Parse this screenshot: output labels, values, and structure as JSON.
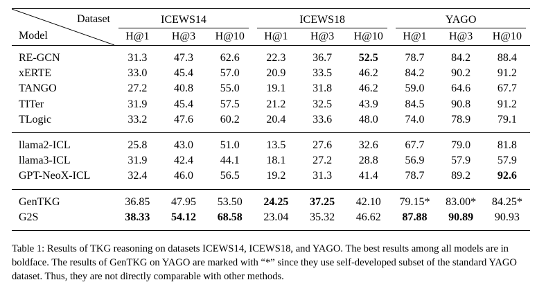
{
  "table": {
    "header": {
      "dataset_label": "Dataset",
      "model_label": "Model",
      "datasets": [
        "ICEWS14",
        "ICEWS18",
        "YAGO"
      ],
      "metrics": [
        "H@1",
        "H@3",
        "H@10"
      ]
    },
    "groups": [
      {
        "rows": [
          {
            "model": "RE-GCN",
            "values": [
              "31.3",
              "47.3",
              "62.6",
              "22.3",
              "36.7",
              "52.5",
              "78.7",
              "84.2",
              "88.4"
            ],
            "bold": [
              5
            ]
          },
          {
            "model": "xERTE",
            "values": [
              "33.0",
              "45.4",
              "57.0",
              "20.9",
              "33.5",
              "46.2",
              "84.2",
              "90.2",
              "91.2"
            ],
            "bold": []
          },
          {
            "model": "TANGO",
            "values": [
              "27.2",
              "40.8",
              "55.0",
              "19.1",
              "31.8",
              "46.2",
              "59.0",
              "64.6",
              "67.7"
            ],
            "bold": []
          },
          {
            "model": "TITer",
            "values": [
              "31.9",
              "45.4",
              "57.5",
              "21.2",
              "32.5",
              "43.9",
              "84.5",
              "90.8",
              "91.2"
            ],
            "bold": []
          },
          {
            "model": "TLogic",
            "values": [
              "33.2",
              "47.6",
              "60.2",
              "20.4",
              "33.6",
              "48.0",
              "74.0",
              "78.9",
              "79.1"
            ],
            "bold": []
          }
        ]
      },
      {
        "rows": [
          {
            "model": "llama2-ICL",
            "values": [
              "25.8",
              "43.0",
              "51.0",
              "13.5",
              "27.6",
              "32.6",
              "67.7",
              "79.0",
              "81.8"
            ],
            "bold": []
          },
          {
            "model": "llama3-ICL",
            "values": [
              "31.9",
              "42.4",
              "44.1",
              "18.1",
              "27.2",
              "28.8",
              "56.9",
              "57.9",
              "57.9"
            ],
            "bold": []
          },
          {
            "model": "GPT-NeoX-ICL",
            "values": [
              "32.4",
              "46.0",
              "56.5",
              "19.2",
              "31.3",
              "41.4",
              "78.7",
              "89.2",
              "92.6"
            ],
            "bold": [
              8
            ]
          }
        ]
      },
      {
        "rows": [
          {
            "model": "GenTKG",
            "values": [
              "36.85",
              "47.95",
              "53.50",
              "24.25",
              "37.25",
              "42.10",
              "79.15*",
              "83.00*",
              "84.25*"
            ],
            "bold": [
              3,
              4
            ]
          },
          {
            "model": "G2S",
            "values": [
              "38.33",
              "54.12",
              "68.58",
              "23.04",
              "35.32",
              "46.62",
              "87.88",
              "90.89",
              "90.93"
            ],
            "bold": [
              0,
              1,
              2,
              6,
              7
            ]
          }
        ]
      }
    ]
  },
  "caption": "Table 1: Results of TKG reasoning on datasets ICEWS14, ICEWS18, and YAGO. The best results among all models are in boldface. The results of GenTKG on YAGO are marked with “*” since they use self-developed subset of the standard YAGO dataset. Thus, they are not directly comparable with other methods."
}
